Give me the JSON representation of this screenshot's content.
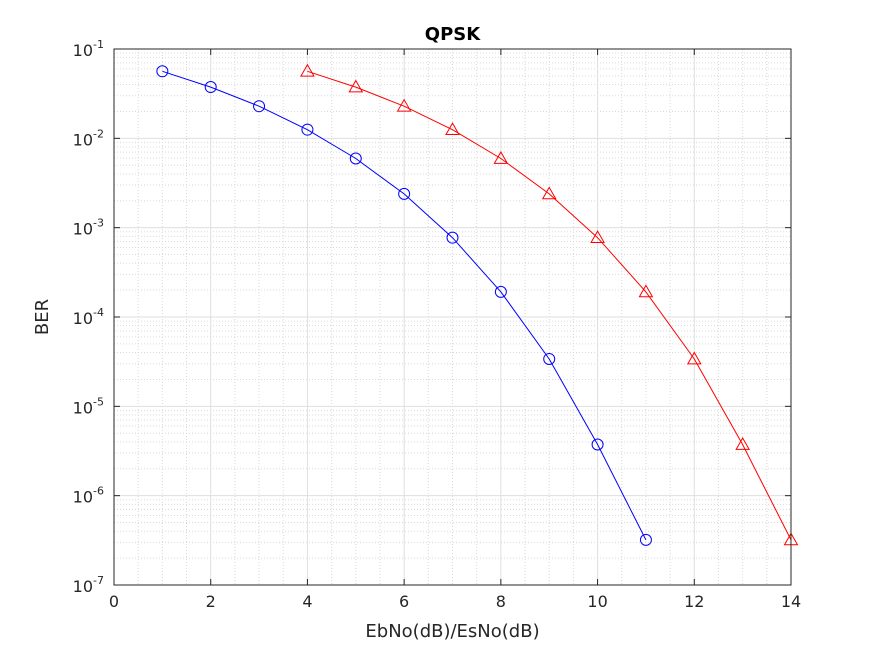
{
  "chart_data": {
    "type": "line",
    "title": "QPSK",
    "xlabel": "EbNo(dB)/EsNo(dB)",
    "ylabel": "BER",
    "xlim": [
      0,
      14
    ],
    "ylim": [
      1e-07,
      0.1
    ],
    "yscale": "log",
    "grid": true,
    "minor_grid": true,
    "x_ticks": [
      0,
      2,
      4,
      6,
      8,
      10,
      12,
      14
    ],
    "y_tick_exponents": [
      -1,
      -2,
      -3,
      -4,
      -5,
      -6,
      -7
    ],
    "y_tick_base": "10",
    "series": [
      {
        "color": "#0000ff",
        "marker": "circle",
        "x": [
          1,
          2,
          3,
          4,
          5,
          6,
          7,
          8,
          9,
          10,
          11
        ],
        "y": [
          0.0563,
          0.0375,
          0.0229,
          0.0125,
          0.00595,
          0.00239,
          0.000773,
          0.000191,
          3.39e-05,
          3.74e-06,
          3.2e-07
        ]
      },
      {
        "color": "#ff0000",
        "marker": "triangle",
        "x": [
          4,
          5,
          6,
          7,
          8,
          9,
          10,
          11,
          12,
          13,
          14
        ],
        "y": [
          0.0563,
          0.0375,
          0.0229,
          0.0125,
          0.00595,
          0.00239,
          0.000773,
          0.000191,
          3.39e-05,
          3.74e-06,
          3.2e-07
        ]
      }
    ]
  }
}
